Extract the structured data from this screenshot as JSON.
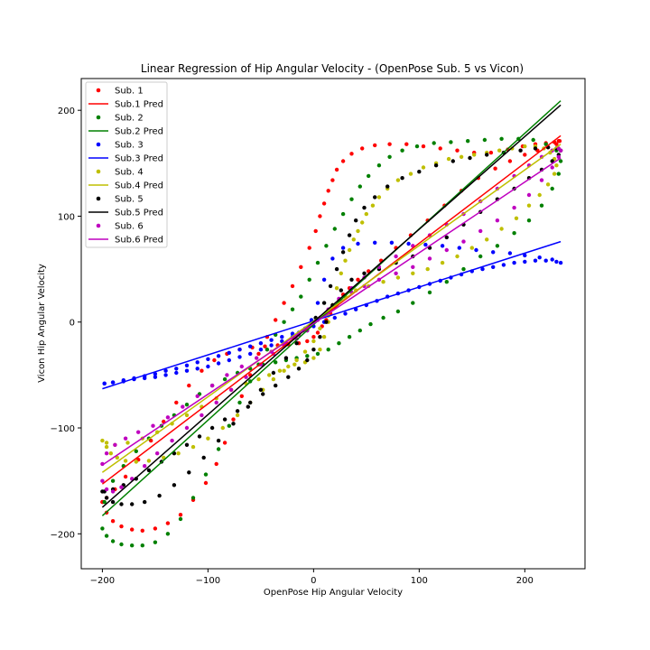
{
  "chart_data": {
    "type": "scatter",
    "title": "Linear Regression of Hip Angular Velocity - (OpenPose Sub. 5 vs Vicon)",
    "xlabel": "OpenPose Hip Angular Velocity",
    "ylabel": "Vicon Hip Angular Velocity",
    "xlim": [
      -220,
      257
    ],
    "ylim": [
      -233,
      230
    ],
    "xticks": [
      -200,
      -100,
      0,
      100,
      200
    ],
    "yticks": [
      -200,
      -100,
      0,
      100,
      200
    ],
    "grid": false,
    "legend_position": "top-left",
    "legend": [
      {
        "label": "Sub. 1",
        "kind": "points",
        "color": "#ff0000"
      },
      {
        "label": "Sub.1 Pred",
        "kind": "line",
        "color": "#ff0000"
      },
      {
        "label": "Sub. 2",
        "kind": "points",
        "color": "#008000"
      },
      {
        "label": "Sub.2 Pred",
        "kind": "line",
        "color": "#008000"
      },
      {
        "label": "Sub. 3",
        "kind": "points",
        "color": "#0000ff"
      },
      {
        "label": "Sub.3 Pred",
        "kind": "line",
        "color": "#0000ff"
      },
      {
        "label": "Sub. 4",
        "kind": "points",
        "color": "#bfbf00"
      },
      {
        "label": "Sub.4 Pred",
        "kind": "line",
        "color": "#bfbf00"
      },
      {
        "label": "Sub. 5",
        "kind": "points",
        "color": "#000000"
      },
      {
        "label": "Sub.5 Pred",
        "kind": "line",
        "color": "#000000"
      },
      {
        "label": "Sub. 6",
        "kind": "points",
        "color": "#bf00bf"
      },
      {
        "label": "Sub.6 Pred",
        "kind": "line",
        "color": "#bf00bf"
      }
    ],
    "series": [
      {
        "name": "Sub. 1",
        "color": "#ff0000",
        "x": [
          -200,
          -196,
          -190,
          -182,
          -172,
          -162,
          -150,
          -138,
          -126,
          -114,
          -102,
          -92,
          -84,
          -76,
          -68,
          -60,
          -52,
          -44,
          -36,
          -28,
          -20,
          -12,
          -4,
          2,
          6,
          10,
          14,
          18,
          22,
          28,
          36,
          46,
          58,
          72,
          88,
          104,
          120,
          136,
          152,
          168,
          184,
          198,
          210,
          220,
          228,
          232,
          233,
          230,
          222,
          212,
          200,
          186,
          172,
          156,
          140,
          124,
          108,
          92,
          78,
          64,
          52,
          42,
          34,
          28,
          24,
          20,
          16,
          12,
          8,
          4,
          0,
          -6,
          -14,
          -24,
          -34,
          -46,
          -58,
          -70,
          -82,
          -94,
          -106,
          -118,
          -130,
          -142,
          -154,
          -166,
          -178,
          -188,
          -196,
          -200
        ],
        "y": [
          -170,
          -180,
          -188,
          -193,
          -196,
          -197,
          -195,
          -190,
          -182,
          -168,
          -152,
          -134,
          -114,
          -92,
          -70,
          -50,
          -30,
          -14,
          2,
          18,
          34,
          52,
          70,
          86,
          100,
          112,
          124,
          134,
          144,
          152,
          159,
          164,
          167,
          168,
          168,
          166,
          164,
          162,
          160,
          160,
          163,
          166,
          168,
          169,
          170,
          171,
          171,
          168,
          165,
          162,
          158,
          152,
          145,
          136,
          124,
          110,
          96,
          82,
          70,
          58,
          48,
          40,
          32,
          26,
          20,
          14,
          8,
          2,
          -4,
          -10,
          -14,
          -18,
          -20,
          -21,
          -22,
          -23,
          -24,
          -26,
          -30,
          -36,
          -46,
          -60,
          -76,
          -94,
          -112,
          -130,
          -146,
          -158,
          -166,
          -170
        ]
      },
      {
        "name": "Sub. 2",
        "color": "#008000",
        "x": [
          -200,
          -196,
          -190,
          -182,
          -172,
          -162,
          -150,
          -138,
          -126,
          -114,
          -102,
          -90,
          -80,
          -70,
          -60,
          -52,
          -44,
          -36,
          -28,
          -20,
          -12,
          -4,
          4,
          12,
          20,
          28,
          36,
          44,
          52,
          62,
          72,
          84,
          98,
          114,
          130,
          146,
          162,
          178,
          194,
          208,
          220,
          230,
          234,
          232,
          226,
          216,
          204,
          190,
          174,
          158,
          142,
          126,
          110,
          94,
          80,
          66,
          54,
          44,
          34,
          24,
          14,
          4,
          -6,
          -16,
          -26,
          -36,
          -48,
          -60,
          -72,
          -84,
          -96,
          -108,
          -120,
          -132,
          -144,
          -156,
          -168,
          -180,
          -190,
          -198
        ],
        "y": [
          -195,
          -202,
          -207,
          -210,
          -211,
          -211,
          -208,
          -200,
          -186,
          -166,
          -144,
          -120,
          -98,
          -76,
          -56,
          -40,
          -26,
          -12,
          0,
          12,
          24,
          40,
          56,
          72,
          88,
          102,
          116,
          128,
          138,
          148,
          156,
          162,
          166,
          169,
          170,
          171,
          172,
          173,
          173,
          172,
          168,
          162,
          152,
          140,
          126,
          110,
          96,
          84,
          72,
          62,
          50,
          38,
          28,
          18,
          10,
          4,
          -2,
          -8,
          -14,
          -20,
          -26,
          -30,
          -32,
          -34,
          -36,
          -38,
          -40,
          -44,
          -48,
          -54,
          -60,
          -68,
          -78,
          -88,
          -98,
          -110,
          -122,
          -136,
          -150,
          -170
        ]
      },
      {
        "name": "Sub. 3",
        "color": "#0000ff",
        "x": [
          -198,
          -190,
          -180,
          -170,
          -160,
          -150,
          -140,
          -130,
          -120,
          -110,
          -100,
          -90,
          -80,
          -70,
          -60,
          -50,
          -40,
          -30,
          -20,
          -10,
          0,
          10,
          20,
          30,
          40,
          50,
          60,
          70,
          80,
          90,
          100,
          110,
          120,
          130,
          140,
          150,
          160,
          170,
          180,
          190,
          200,
          210,
          220,
          230,
          234,
          226,
          214,
          200,
          186,
          170,
          154,
          138,
          122,
          106,
          90,
          74,
          58,
          42,
          28,
          18,
          10,
          4,
          -2,
          -8,
          -14,
          -20,
          -30,
          -40,
          -50,
          -60,
          -70,
          -80,
          -90,
          -100,
          -110,
          -120,
          -130,
          -140,
          -150,
          -160,
          -170,
          -180,
          -190,
          -198
        ],
        "y": [
          -58,
          -57,
          -55,
          -53,
          -51,
          -49,
          -46,
          -44,
          -41,
          -38,
          -35,
          -32,
          -29,
          -26,
          -23,
          -20,
          -17,
          -14,
          -11,
          -8,
          -4,
          0,
          4,
          8,
          12,
          16,
          20,
          24,
          27,
          30,
          33,
          36,
          39,
          42,
          45,
          48,
          50,
          52,
          54,
          56,
          57,
          58,
          58,
          57,
          56,
          59,
          61,
          63,
          65,
          66,
          68,
          70,
          72,
          73,
          74,
          75,
          75,
          74,
          70,
          60,
          40,
          18,
          2,
          -6,
          -10,
          -14,
          -18,
          -22,
          -26,
          -30,
          -33,
          -36,
          -39,
          -42,
          -44,
          -46,
          -48,
          -50,
          -52,
          -53,
          -54,
          -56,
          -57,
          -58
        ]
      },
      {
        "name": "Sub. 4",
        "color": "#bfbf00",
        "x": [
          -200,
          -196,
          -192,
          -186,
          -178,
          -168,
          -156,
          -142,
          -128,
          -114,
          -100,
          -86,
          -72,
          -60,
          -48,
          -38,
          -28,
          -18,
          -8,
          0,
          6,
          10,
          14,
          18,
          22,
          26,
          30,
          34,
          38,
          42,
          46,
          50,
          56,
          62,
          70,
          80,
          92,
          104,
          116,
          128,
          140,
          152,
          164,
          176,
          188,
          200,
          210,
          218,
          224,
          228,
          230,
          228,
          222,
          214,
          204,
          192,
          178,
          164,
          150,
          136,
          122,
          108,
          94,
          80,
          66,
          52,
          40,
          30,
          22,
          14,
          6,
          0,
          -8,
          -16,
          -24,
          -32,
          -42,
          -52,
          -64,
          -78,
          -92,
          -106,
          -120,
          -134,
          -148,
          -162,
          -176,
          -188,
          -196
        ],
        "y": [
          -112,
          -118,
          -124,
          -128,
          -131,
          -132,
          -131,
          -128,
          -124,
          -118,
          -110,
          -100,
          -88,
          -76,
          -64,
          -54,
          -46,
          -40,
          -38,
          -34,
          -26,
          -14,
          0,
          16,
          32,
          46,
          58,
          68,
          78,
          86,
          94,
          102,
          110,
          118,
          126,
          134,
          140,
          146,
          150,
          154,
          156,
          158,
          160,
          162,
          164,
          166,
          166,
          164,
          160,
          154,
          148,
          140,
          130,
          120,
          110,
          98,
          88,
          78,
          70,
          62,
          56,
          50,
          46,
          42,
          38,
          34,
          30,
          24,
          16,
          6,
          -6,
          -18,
          -28,
          -36,
          -42,
          -46,
          -50,
          -54,
          -58,
          -64,
          -72,
          -80,
          -88,
          -96,
          -104,
          -110,
          -114,
          -116,
          -114
        ]
      },
      {
        "name": "Sub. 5",
        "color": "#000000",
        "x": [
          -200,
          -196,
          -190,
          -182,
          -172,
          -160,
          -146,
          -132,
          -118,
          -104,
          -90,
          -76,
          -62,
          -50,
          -38,
          -26,
          -16,
          -6,
          2,
          10,
          16,
          22,
          28,
          34,
          40,
          48,
          58,
          70,
          84,
          100,
          116,
          132,
          148,
          164,
          180,
          196,
          210,
          222,
          230,
          234,
          232,
          226,
          216,
          204,
          190,
          174,
          158,
          142,
          126,
          110,
          94,
          78,
          62,
          48,
          36,
          26,
          18,
          12,
          6,
          0,
          -6,
          -14,
          -24,
          -36,
          -48,
          -60,
          -72,
          -84,
          -96,
          -108,
          -120,
          -132,
          -144,
          -156,
          -168,
          -180,
          -190,
          -198
        ],
        "y": [
          -160,
          -166,
          -170,
          -172,
          -172,
          -170,
          -164,
          -154,
          -142,
          -128,
          -112,
          -96,
          -80,
          -64,
          -48,
          -34,
          -20,
          -8,
          4,
          18,
          34,
          50,
          66,
          82,
          96,
          108,
          118,
          128,
          136,
          142,
          148,
          152,
          155,
          158,
          160,
          162,
          164,
          165,
          164,
          162,
          158,
          152,
          144,
          136,
          126,
          116,
          104,
          92,
          80,
          70,
          62,
          56,
          50,
          46,
          40,
          30,
          16,
          0,
          -14,
          -26,
          -36,
          -44,
          -52,
          -60,
          -68,
          -76,
          -84,
          -92,
          -100,
          -108,
          -116,
          -124,
          -132,
          -140,
          -148,
          -154,
          -158,
          -160
        ]
      },
      {
        "name": "Sub. 6",
        "color": "#bf00bf",
        "x": [
          -200,
          -196,
          -190,
          -182,
          -172,
          -160,
          -148,
          -134,
          -120,
          -106,
          -92,
          -78,
          -64,
          -50,
          -38,
          -26,
          -14,
          -4,
          6,
          16,
          26,
          36,
          48,
          62,
          78,
          94,
          110,
          126,
          142,
          158,
          174,
          190,
          204,
          216,
          226,
          232,
          234,
          232,
          226,
          216,
          204,
          190,
          174,
          158,
          142,
          126,
          110,
          94,
          78,
          62,
          48,
          36,
          24,
          14,
          4,
          -6,
          -16,
          -28,
          -40,
          -54,
          -68,
          -82,
          -96,
          -110,
          -124,
          -138,
          -152,
          -166,
          -178,
          -188,
          -196,
          -200
        ],
        "y": [
          -150,
          -158,
          -160,
          -156,
          -148,
          -136,
          -124,
          -112,
          -100,
          -88,
          -76,
          -64,
          -52,
          -40,
          -30,
          -20,
          -12,
          -4,
          4,
          12,
          20,
          28,
          34,
          40,
          46,
          52,
          60,
          68,
          76,
          86,
          96,
          108,
          120,
          134,
          146,
          156,
          162,
          164,
          162,
          156,
          148,
          138,
          126,
          114,
          102,
          92,
          82,
          72,
          62,
          52,
          42,
          32,
          22,
          12,
          2,
          -8,
          -16,
          -22,
          -28,
          -34,
          -42,
          -50,
          -60,
          -70,
          -80,
          -90,
          -98,
          -104,
          -110,
          -116,
          -124,
          -134
        ]
      }
    ],
    "regression_lines": [
      {
        "name": "Sub.1 Pred",
        "color": "#ff0000",
        "x": [
          -200,
          234
        ],
        "y": [
          -153,
          176
        ]
      },
      {
        "name": "Sub.2 Pred",
        "color": "#008000",
        "x": [
          -200,
          234
        ],
        "y": [
          -183,
          209
        ]
      },
      {
        "name": "Sub.3 Pred",
        "color": "#0000ff",
        "x": [
          -200,
          234
        ],
        "y": [
          -63,
          76
        ]
      },
      {
        "name": "Sub.4 Pred",
        "color": "#bfbf00",
        "x": [
          -200,
          234
        ],
        "y": [
          -142,
          168
        ]
      },
      {
        "name": "Sub.5 Pred",
        "color": "#000000",
        "x": [
          -200,
          234
        ],
        "y": [
          -175,
          205
        ]
      },
      {
        "name": "Sub.6 Pred",
        "color": "#bf00bf",
        "x": [
          -200,
          234
        ],
        "y": [
          -135,
          155
        ]
      }
    ]
  }
}
